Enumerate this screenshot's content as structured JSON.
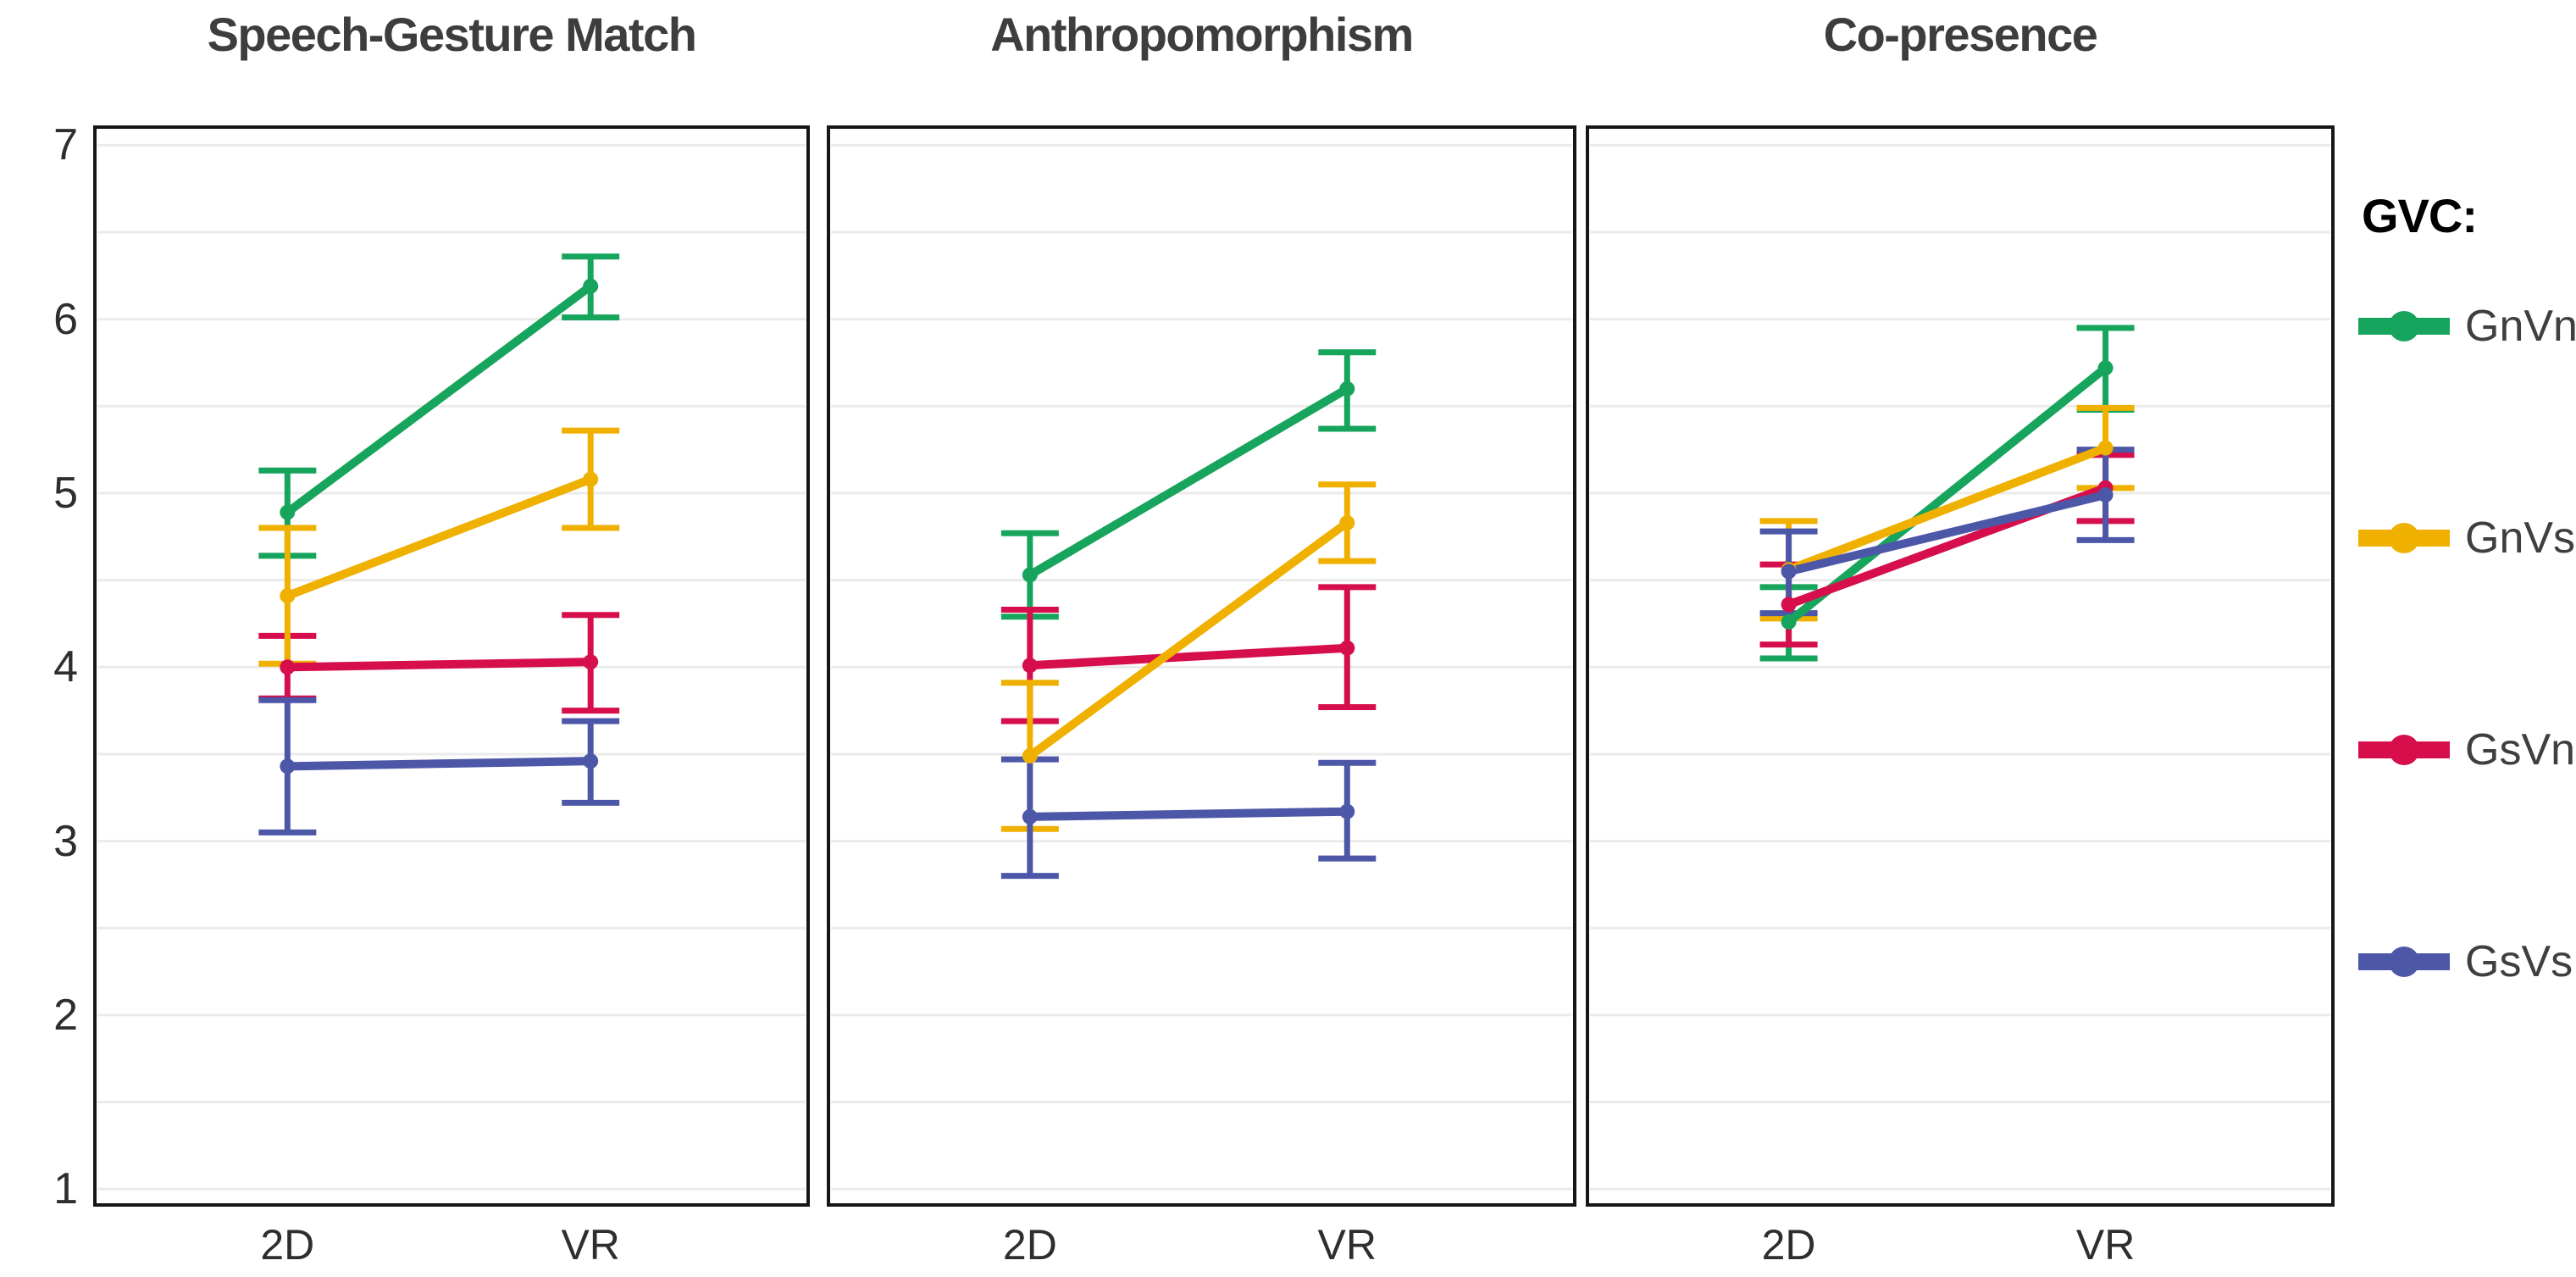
{
  "figure": {
    "background": "#ffffff",
    "text_color_title": "#3d3d3d",
    "grid_color": "#ebebeb",
    "border_color": "#161616"
  },
  "legend": {
    "title": "GVC:",
    "items": [
      {
        "label": "GnVn",
        "color": "#17A45C"
      },
      {
        "label": "GnVs",
        "color": "#F0B000"
      },
      {
        "label": "GsVn",
        "color": "#D60F4C"
      },
      {
        "label": "GsVs",
        "color": "#4D57A8"
      }
    ]
  },
  "chart_data": [
    {
      "type": "line",
      "title": "Speech-Gesture Match",
      "x_categories": [
        "2D",
        "VR"
      ],
      "ylim": [
        1,
        7
      ],
      "y_ticks": [
        1,
        2,
        3,
        4,
        5,
        6,
        7
      ],
      "grid_step": 0.5,
      "legend_position": "right",
      "error_bars": true,
      "series": [
        {
          "name": "GnVn",
          "color": "#17A45C",
          "values": [
            4.89,
            6.19
          ],
          "err_low": [
            4.64,
            6.01
          ],
          "err_high": [
            5.13,
            6.36
          ]
        },
        {
          "name": "GnVs",
          "color": "#F0B000",
          "values": [
            4.41,
            5.08
          ],
          "err_low": [
            4.02,
            4.8
          ],
          "err_high": [
            4.8,
            5.36
          ]
        },
        {
          "name": "GsVn",
          "color": "#D60F4C",
          "values": [
            4.0,
            4.03
          ],
          "err_low": [
            3.82,
            3.75
          ],
          "err_high": [
            4.18,
            4.3
          ]
        },
        {
          "name": "GsVs",
          "color": "#4D57A8",
          "values": [
            3.43,
            3.46
          ],
          "err_low": [
            3.05,
            3.22
          ],
          "err_high": [
            3.81,
            3.69
          ]
        }
      ]
    },
    {
      "type": "line",
      "title": "Anthropomorphism",
      "x_categories": [
        "2D",
        "VR"
      ],
      "ylim": [
        1,
        7
      ],
      "y_ticks": [
        1,
        2,
        3,
        4,
        5,
        6,
        7
      ],
      "grid_step": 0.5,
      "error_bars": true,
      "series": [
        {
          "name": "GnVn",
          "color": "#17A45C",
          "values": [
            4.53,
            5.6
          ],
          "err_low": [
            4.29,
            5.37
          ],
          "err_high": [
            4.77,
            5.81
          ]
        },
        {
          "name": "GnVs",
          "color": "#F0B000",
          "values": [
            3.49,
            4.83
          ],
          "err_low": [
            3.07,
            4.61
          ],
          "err_high": [
            3.91,
            5.05
          ]
        },
        {
          "name": "GsVn",
          "color": "#D60F4C",
          "values": [
            4.01,
            4.11
          ],
          "err_low": [
            3.69,
            3.77
          ],
          "err_high": [
            4.33,
            4.46
          ]
        },
        {
          "name": "GsVs",
          "color": "#4D57A8",
          "values": [
            3.14,
            3.17
          ],
          "err_low": [
            2.8,
            2.9
          ],
          "err_high": [
            3.47,
            3.45
          ]
        }
      ]
    },
    {
      "type": "line",
      "title": "Co-presence",
      "x_categories": [
        "2D",
        "VR"
      ],
      "ylim": [
        1,
        7
      ],
      "y_ticks": [
        1,
        2,
        3,
        4,
        5,
        6,
        7
      ],
      "grid_step": 0.5,
      "error_bars": true,
      "series": [
        {
          "name": "GnVn",
          "color": "#17A45C",
          "values": [
            4.26,
            5.72
          ],
          "err_low": [
            4.05,
            5.48
          ],
          "err_high": [
            4.46,
            5.95
          ]
        },
        {
          "name": "GnVs",
          "color": "#F0B000",
          "values": [
            4.56,
            5.26
          ],
          "err_low": [
            4.28,
            5.03
          ],
          "err_high": [
            4.84,
            5.49
          ]
        },
        {
          "name": "GsVn",
          "color": "#D60F4C",
          "values": [
            4.36,
            5.03
          ],
          "err_low": [
            4.13,
            4.84
          ],
          "err_high": [
            4.59,
            5.22
          ]
        },
        {
          "name": "GsVs",
          "color": "#4D57A8",
          "values": [
            4.55,
            4.99
          ],
          "err_low": [
            4.31,
            4.73
          ],
          "err_high": [
            4.78,
            5.25
          ]
        }
      ]
    }
  ]
}
